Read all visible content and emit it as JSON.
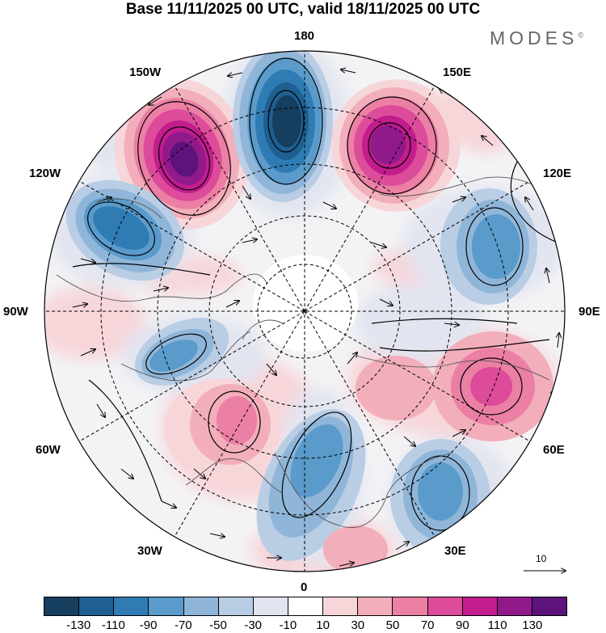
{
  "header": {
    "title": "Base 11/11/2025 00 UTC, valid 18/11/2025 00 UTC",
    "brand": "MODES",
    "brand_mark": "©"
  },
  "map": {
    "projection": "polar-stereographic",
    "hemisphere": "north",
    "longitude_labels": {
      "top": "180",
      "top_left": "150W",
      "top_right": "150E",
      "upper_left": "120W",
      "upper_right": "120E",
      "left": "90W",
      "right": "90E",
      "lower_left": "60W",
      "lower_right": "60E",
      "bottom_left": "30W",
      "bottom_right": "30E",
      "bottom": "0"
    },
    "reference_vector": {
      "value": "10"
    }
  },
  "colorbar": {
    "colors": [
      "#153e5f",
      "#1f5f91",
      "#2f7cb4",
      "#5a9bcb",
      "#8fb6d9",
      "#b9cde5",
      "#e2e5f0",
      "#ffffff",
      "#f7d6da",
      "#f2aebb",
      "#eb7fa4",
      "#dc4c9a",
      "#c21c8d",
      "#911a8a",
      "#5c137b"
    ],
    "ticks": [
      "-130",
      "-110",
      "-90",
      "-70",
      "-50",
      "-30",
      "-10",
      "10",
      "30",
      "50",
      "70",
      "90",
      "110",
      "130"
    ]
  }
}
